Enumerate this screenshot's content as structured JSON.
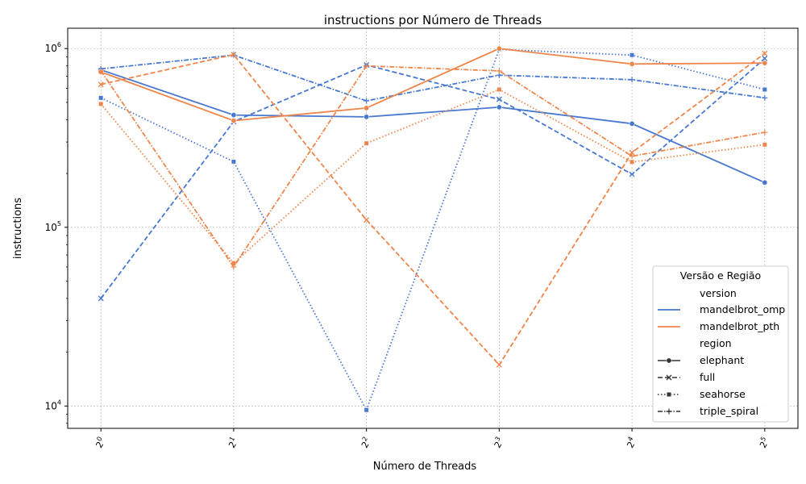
{
  "chart_data": {
    "type": "line",
    "title": "instructions por Número de Threads",
    "xlabel": "Número de Threads",
    "ylabel": "instructions",
    "yscale": "log",
    "ylim": [
      7500,
      1300000
    ],
    "xlim": [
      -0.25,
      5.25
    ],
    "grid": true,
    "x": [
      0,
      1,
      2,
      3,
      4,
      5
    ],
    "x_tick_base": "2",
    "x_tick_exponents": [
      "0",
      "1",
      "2",
      "3",
      "4",
      "5"
    ],
    "y_ticks": [
      {
        "value": 10000,
        "base": "10",
        "exp": "4"
      },
      {
        "value": 100000,
        "base": "10",
        "exp": "5"
      },
      {
        "value": 1000000,
        "base": "10",
        "exp": "6"
      }
    ],
    "legend": {
      "title": "Versão e Região",
      "placement": "lower-right",
      "hue_title": "version",
      "style_title": "region",
      "versions": [
        {
          "name": "mandelbrot_omp",
          "color": "#4878d0"
        },
        {
          "name": "mandelbrot_pth",
          "color": "#ee854a"
        }
      ],
      "regions": [
        {
          "name": "elephant",
          "dash": "solid",
          "marker": "circle"
        },
        {
          "name": "full",
          "dash": "dashed",
          "marker": "x"
        },
        {
          "name": "seahorse",
          "dash": "dotted",
          "marker": "square"
        },
        {
          "name": "triple_spiral",
          "dash": "dashdot",
          "marker": "plus"
        }
      ]
    },
    "series": [
      {
        "version": "mandelbrot_omp",
        "region": "elephant",
        "values": [
          760000,
          425000,
          415000,
          470000,
          380000,
          178000
        ]
      },
      {
        "version": "mandelbrot_omp",
        "region": "full",
        "values": [
          40000,
          390000,
          810000,
          520000,
          198000,
          880000
        ]
      },
      {
        "version": "mandelbrot_omp",
        "region": "seahorse",
        "values": [
          530000,
          233000,
          9500,
          990000,
          920000,
          590000
        ]
      },
      {
        "version": "mandelbrot_omp",
        "region": "triple_spiral",
        "values": [
          770000,
          920000,
          510000,
          710000,
          670000,
          530000
        ]
      },
      {
        "version": "mandelbrot_pth",
        "region": "elephant",
        "values": [
          740000,
          395000,
          465000,
          1000000,
          820000,
          830000
        ]
      },
      {
        "version": "mandelbrot_pth",
        "region": "full",
        "values": [
          630000,
          925000,
          110000,
          17000,
          262000,
          940000
        ]
      },
      {
        "version": "mandelbrot_pth",
        "region": "seahorse",
        "values": [
          490000,
          63000,
          295000,
          590000,
          232000,
          290000
        ]
      },
      {
        "version": "mandelbrot_pth",
        "region": "triple_spiral",
        "values": [
          750000,
          60000,
          800000,
          750000,
          250000,
          340000
        ]
      }
    ]
  }
}
